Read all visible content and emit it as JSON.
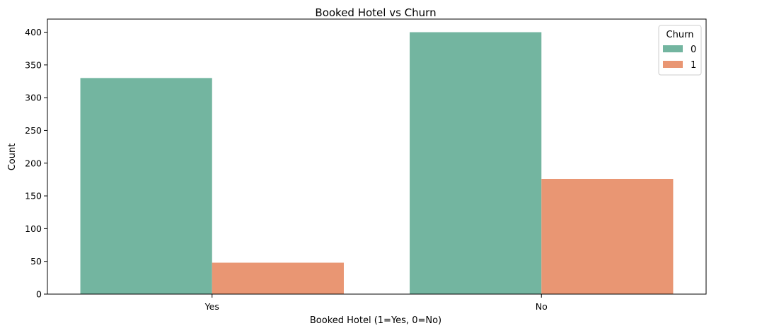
{
  "chart_data": {
    "type": "bar",
    "title": "Booked Hotel vs Churn",
    "xlabel": "Booked Hotel (1=Yes, 0=No)",
    "ylabel": "Count",
    "categories": [
      "Yes",
      "No"
    ],
    "ylim": [
      0,
      420
    ],
    "yticks": [
      0,
      50,
      100,
      150,
      200,
      250,
      300,
      350,
      400
    ],
    "grid": false,
    "legend": {
      "title": "Churn",
      "placement": "top-right"
    },
    "series": [
      {
        "name": "0",
        "color": "#73b5a0",
        "values": [
          330,
          400
        ]
      },
      {
        "name": "1",
        "color": "#e99673",
        "values": [
          48,
          176
        ]
      }
    ]
  }
}
